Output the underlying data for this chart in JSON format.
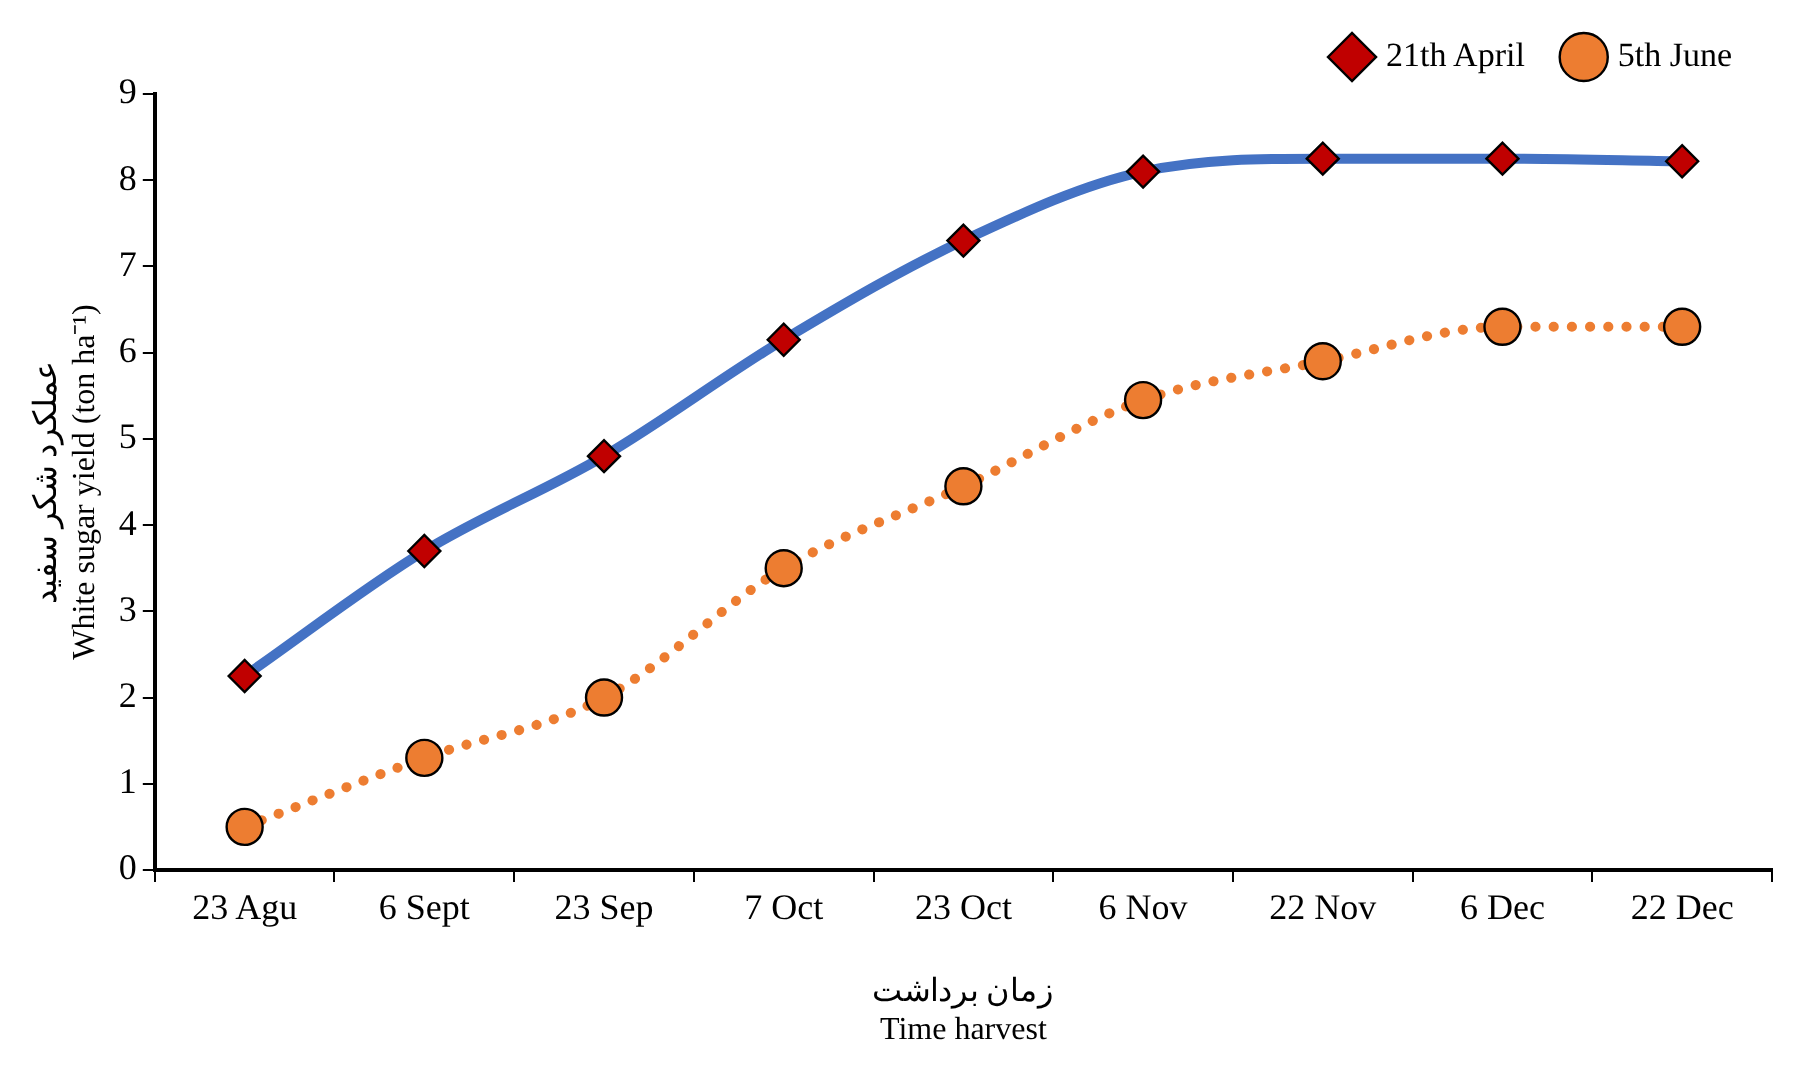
{
  "chart_data": {
    "type": "line",
    "xlabel": "زمان برداشت\nTime harvest",
    "ylabel": "عملکرد شکر سفید\nWhite sugar yield (ton ha⁻¹)",
    "categories": [
      "23 Agu",
      "6 Sept",
      "23 Sep",
      "7 Oct",
      "23 Oct",
      "6 Nov",
      "22 Nov",
      "6 Dec",
      "22 Dec"
    ],
    "series": [
      {
        "name": "21th April",
        "color": "#4472c4",
        "marker": "diamond",
        "line_style": "solid",
        "values": [
          2.25,
          3.7,
          4.8,
          6.15,
          7.3,
          8.1,
          8.25,
          8.25,
          8.22
        ]
      },
      {
        "name": "5th June",
        "color": "#ed7d31",
        "marker": "circle",
        "line_style": "dotted",
        "values": [
          0.5,
          1.3,
          2.0,
          3.5,
          4.45,
          5.45,
          5.9,
          6.3,
          6.3
        ]
      }
    ],
    "ylim": [
      0,
      9
    ],
    "yticks": [
      0,
      1,
      2,
      3,
      4,
      5,
      6,
      7,
      8,
      9
    ],
    "grid": false,
    "legend": "top right"
  }
}
